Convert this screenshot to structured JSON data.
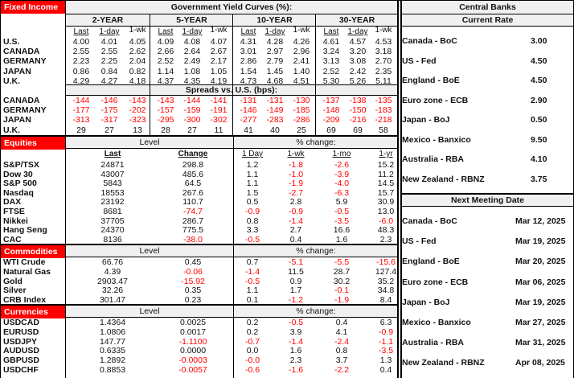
{
  "fixed_income": {
    "label": "Fixed Income",
    "title": "Government Yield Curves (%):",
    "tenors": [
      "2-YEAR",
      "5-YEAR",
      "10-YEAR",
      "30-YEAR"
    ],
    "col_headers": [
      "Last",
      "1-day",
      "1-wk"
    ],
    "yields": [
      {
        "country": "U.S.",
        "values": [
          "4.00",
          "4.01",
          "4.05",
          "4.09",
          "4.08",
          "4.07",
          "4.31",
          "4.28",
          "4.26",
          "4.61",
          "4.57",
          "4.53"
        ]
      },
      {
        "country": "CANADA",
        "values": [
          "2.55",
          "2.55",
          "2.62",
          "2.66",
          "2.64",
          "2.67",
          "3.01",
          "2.97",
          "2.96",
          "3.24",
          "3.20",
          "3.18"
        ]
      },
      {
        "country": "GERMANY",
        "values": [
          "2.23",
          "2.25",
          "2.04",
          "2.52",
          "2.49",
          "2.17",
          "2.86",
          "2.79",
          "2.41",
          "3.13",
          "3.08",
          "2.70"
        ]
      },
      {
        "country": "JAPAN",
        "values": [
          "0.86",
          "0.84",
          "0.82",
          "1.14",
          "1.08",
          "1.05",
          "1.54",
          "1.45",
          "1.40",
          "2.52",
          "2.42",
          "2.35"
        ]
      },
      {
        "country": "U.K.",
        "values": [
          "4.29",
          "4.27",
          "4.18",
          "4.37",
          "4.35",
          "4.19",
          "4.73",
          "4.68",
          "4.51",
          "5.30",
          "5.26",
          "5.11"
        ]
      }
    ],
    "spreads_title": "Spreads vs. U.S. (bps):",
    "spreads": [
      {
        "country": "CANADA",
        "values": [
          "-144",
          "-146",
          "-143",
          "-143",
          "-144",
          "-141",
          "-131",
          "-131",
          "-130",
          "-137",
          "-138",
          "-135"
        ]
      },
      {
        "country": "GERMANY",
        "values": [
          "-177",
          "-175",
          "-202",
          "-157",
          "-159",
          "-191",
          "-146",
          "-149",
          "-185",
          "-148",
          "-150",
          "-183"
        ]
      },
      {
        "country": "JAPAN",
        "values": [
          "-313",
          "-317",
          "-323",
          "-295",
          "-300",
          "-302",
          "-277",
          "-283",
          "-286",
          "-209",
          "-216",
          "-218"
        ]
      },
      {
        "country": "U.K.",
        "values": [
          "29",
          "27",
          "13",
          "28",
          "27",
          "11",
          "41",
          "40",
          "25",
          "69",
          "69",
          "58"
        ]
      }
    ]
  },
  "equities": {
    "label": "Equities",
    "level_label": "Level",
    "pct_label": "% change:",
    "headers": [
      "Last",
      "Change",
      "1 Day",
      "1-wk",
      "1-mo",
      "1-yr"
    ],
    "rows": [
      {
        "name": "S&P/TSX",
        "values": [
          "24871",
          "298.8",
          "1.2",
          "-1.8",
          "-2.6",
          "15.2"
        ]
      },
      {
        "name": "Dow 30",
        "values": [
          "43007",
          "485.6",
          "1.1",
          "-1.0",
          "-3.9",
          "11.2"
        ]
      },
      {
        "name": "S&P 500",
        "values": [
          "5843",
          "64.5",
          "1.1",
          "-1.9",
          "-4.0",
          "14.5"
        ]
      },
      {
        "name": "Nasdaq",
        "values": [
          "18553",
          "267.6",
          "1.5",
          "-2.7",
          "-6.3",
          "15.7"
        ]
      },
      {
        "name": "DAX",
        "values": [
          "23192",
          "110.7",
          "0.5",
          "2.8",
          "5.9",
          "30.9"
        ]
      },
      {
        "name": "FTSE",
        "values": [
          "8681",
          "-74.7",
          "-0.9",
          "-0.9",
          "-0.5",
          "13.0"
        ]
      },
      {
        "name": "Nikkei",
        "values": [
          "37705",
          "286.7",
          "0.8",
          "-1.4",
          "-3.5",
          "-6.0"
        ]
      },
      {
        "name": "Hang Seng",
        "values": [
          "24370",
          "775.5",
          "3.3",
          "2.7",
          "16.6",
          "48.3"
        ]
      },
      {
        "name": "CAC",
        "values": [
          "8136",
          "-38.0",
          "-0.5",
          "0.4",
          "1.6",
          "2.3"
        ]
      }
    ]
  },
  "commodities": {
    "label": "Commodities",
    "level_label": "Level",
    "pct_label": "% change:",
    "rows": [
      {
        "name": "WTI Crude",
        "values": [
          "66.76",
          "0.45",
          "0.7",
          "-5.1",
          "-5.5",
          "-15.6"
        ]
      },
      {
        "name": "Natural Gas",
        "values": [
          "4.39",
          "-0.06",
          "-1.4",
          "11.5",
          "28.7",
          "127.4"
        ]
      },
      {
        "name": "Gold",
        "values": [
          "2903.47",
          "-15.92",
          "-0.5",
          "0.9",
          "30.2",
          "35.2"
        ]
      },
      {
        "name": "Silver",
        "values": [
          "32.26",
          "0.35",
          "1.1",
          "1.7",
          "-0.1",
          "34.8"
        ]
      },
      {
        "name": "CRB Index",
        "values": [
          "301.47",
          "0.23",
          "0.1",
          "-1.2",
          "-1.9",
          "8.4"
        ]
      }
    ]
  },
  "currencies": {
    "label": "Currencies",
    "level_label": "Level",
    "pct_label": "% change:",
    "rows": [
      {
        "name": "USDCAD",
        "values": [
          "1.4364",
          "0.0025",
          "0.2",
          "-0.5",
          "0.4",
          "6.3"
        ]
      },
      {
        "name": "EURUSD",
        "values": [
          "1.0806",
          "0.0017",
          "0.2",
          "3.9",
          "4.1",
          "-0.9"
        ]
      },
      {
        "name": "USDJPY",
        "values": [
          "147.77",
          "-1.1100",
          "-0.7",
          "-1.4",
          "-2.4",
          "-1.1"
        ]
      },
      {
        "name": "AUDUSD",
        "values": [
          "0.6335",
          "0.0000",
          "0.0",
          "1.6",
          "0.8",
          "-3.5"
        ]
      },
      {
        "name": "GBPUSD",
        "values": [
          "1.2892",
          "-0.0003",
          "-0.0",
          "2.3",
          "3.7",
          "1.3"
        ]
      },
      {
        "name": "USDCHF",
        "values": [
          "0.8853",
          "-0.0057",
          "-0.6",
          "-1.6",
          "-2.2",
          "0.4"
        ]
      }
    ]
  },
  "central_banks": {
    "title": "Central Banks",
    "current_rate_title": "Current Rate",
    "rates": [
      {
        "bank": "Canada - BoC",
        "value": "3.00"
      },
      {
        "bank": "US - Fed",
        "value": "4.50"
      },
      {
        "bank": "England - BoE",
        "value": "4.50"
      },
      {
        "bank": "Euro zone - ECB",
        "value": "2.90"
      },
      {
        "bank": "Japan - BoJ",
        "value": "0.50"
      },
      {
        "bank": "Mexico - Banxico",
        "value": "9.50"
      },
      {
        "bank": "Australia - RBA",
        "value": "4.10"
      },
      {
        "bank": "New Zealand - RBNZ",
        "value": "3.75"
      }
    ],
    "next_meeting_title": "Next Meeting Date",
    "meetings": [
      {
        "bank": "Canada - BoC",
        "date": "Mar 12, 2025"
      },
      {
        "bank": "US - Fed",
        "date": "Mar 19, 2025"
      },
      {
        "bank": "England - BoE",
        "date": "Mar 20, 2025"
      },
      {
        "bank": "Euro zone - ECB",
        "date": "Mar 06, 2025"
      },
      {
        "bank": "Japan - BoJ",
        "date": "Mar 19, 2025"
      },
      {
        "bank": "Mexico - Banxico",
        "date": "Mar 27, 2025"
      },
      {
        "bank": "Australia - RBA",
        "date": "Mar 31, 2025"
      },
      {
        "bank": "New Zealand - RBNZ",
        "date": "Apr 08, 2025"
      }
    ]
  },
  "colors": {
    "negative": "#ff0000",
    "section_label_bg": "#ff0000",
    "header_bg": "#f0f0f0"
  }
}
